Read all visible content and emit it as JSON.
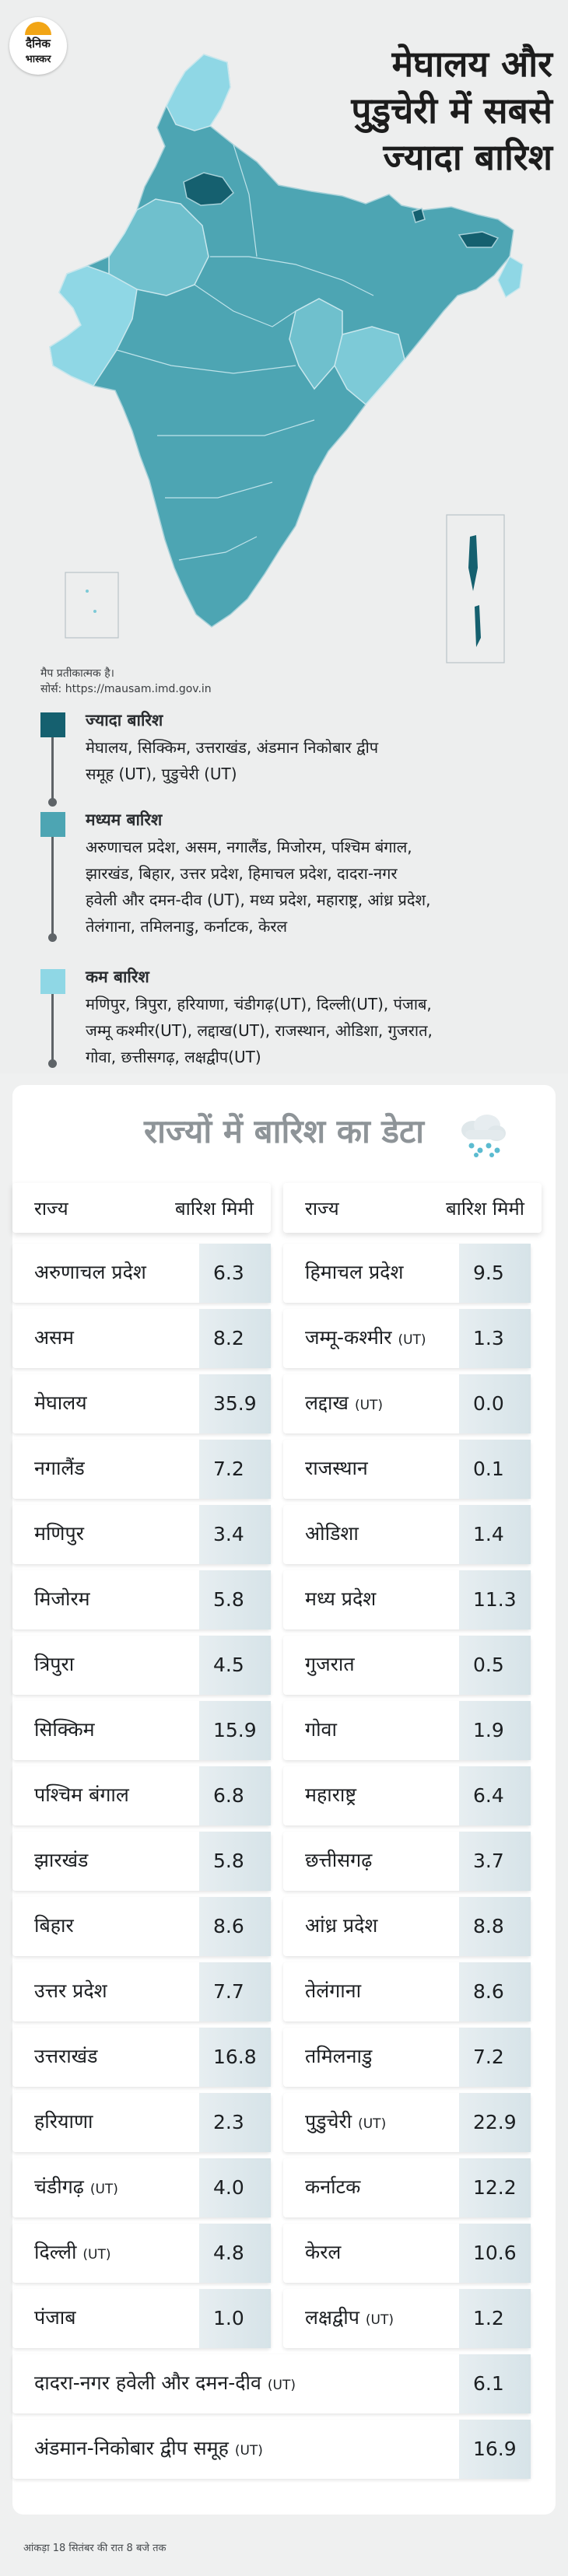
{
  "brand": {
    "logo_line1": "दैनिक",
    "logo_line2": "भास्कर"
  },
  "headline": [
    "मेघालय और",
    "पुडुचेरी में सबसे",
    "ज्यादा बारिश"
  ],
  "map_notes": {
    "line1": "मैप प्रतीकात्मक है।",
    "line2": "सोर्स: https://mausam.imd.gov.in"
  },
  "colors": {
    "high": "#15606f",
    "medium": "#4da5b3",
    "low": "#8fd7e5",
    "accent": "#f2a515"
  },
  "legend": [
    {
      "title": "ज्यादा बारिश",
      "lines": [
        "मेघालय, सिक्किम, उत्तराखंड, अंडमान निकोबार द्वीप",
        "समूह (UT), पुडुचेरी (UT)"
      ]
    },
    {
      "title": "मध्यम बारिश",
      "lines": [
        "अरुणाचल प्रदेश, असम, नगालैंड, मिजोरम, पश्चिम बंगाल,",
        "झारखंड, बिहार, उत्तर प्रदेश, हिमाचल प्रदेश, दादरा-नगर",
        "हवेली और दमन-दीव (UT), मध्य प्रदेश, महाराष्ट्र, आंध्र प्रदेश,",
        "तेलंगाना, तमिलनाडु, कर्नाटक, केरल"
      ]
    },
    {
      "title": "कम बारिश",
      "lines": [
        "मणिपुर, त्रिपुरा, हरियाणा, चंडीगढ़(UT), दिल्ली(UT), पंजाब,",
        "जम्मू कश्मीर(UT), लद्दाख(UT), राजस्थान, ओडिशा, गुजरात,",
        "गोवा, छत्तीसगढ़, लक्षद्वीप(UT)"
      ]
    }
  ],
  "table": {
    "title": "राज्यों में बारिश का डेटा",
    "icon": "rain-cloud-icon",
    "col_state": "राज्य",
    "col_rain": "बारिश मिमी",
    "left": [
      {
        "name": "अरुणाचल प्रदेश",
        "ut": "",
        "value": "6.3"
      },
      {
        "name": "असम",
        "ut": "",
        "value": "8.2"
      },
      {
        "name": "मेघालय",
        "ut": "",
        "value": "35.9"
      },
      {
        "name": "नगालैंड",
        "ut": "",
        "value": "7.2"
      },
      {
        "name": "मणिपुर",
        "ut": "",
        "value": "3.4"
      },
      {
        "name": "मिजोरम",
        "ut": "",
        "value": "5.8"
      },
      {
        "name": "त्रिपुरा",
        "ut": "",
        "value": "4.5"
      },
      {
        "name": "सिक्किम",
        "ut": "",
        "value": "15.9"
      },
      {
        "name": "पश्चिम बंगाल",
        "ut": "",
        "value": "6.8"
      },
      {
        "name": "झारखंड",
        "ut": "",
        "value": "5.8"
      },
      {
        "name": "बिहार",
        "ut": "",
        "value": "8.6"
      },
      {
        "name": "उत्तर प्रदेश",
        "ut": "",
        "value": "7.7"
      },
      {
        "name": "उत्तराखंड",
        "ut": "",
        "value": "16.8"
      },
      {
        "name": "हरियाणा",
        "ut": "",
        "value": "2.3"
      },
      {
        "name": "चंडीगढ़",
        "ut": "(UT)",
        "value": "4.0"
      },
      {
        "name": "दिल्ली",
        "ut": "(UT)",
        "value": "4.8"
      },
      {
        "name": "पंजाब",
        "ut": "",
        "value": "1.0"
      }
    ],
    "right": [
      {
        "name": "हिमाचल प्रदेश",
        "ut": "",
        "value": "9.5"
      },
      {
        "name": "जम्मू-कश्मीर",
        "ut": "(UT)",
        "value": "1.3"
      },
      {
        "name": "लद्दाख",
        "ut": "(UT)",
        "value": "0.0"
      },
      {
        "name": "राजस्थान",
        "ut": "",
        "value": "0.1"
      },
      {
        "name": "ओडिशा",
        "ut": "",
        "value": "1.4"
      },
      {
        "name": "मध्य प्रदेश",
        "ut": "",
        "value": "11.3"
      },
      {
        "name": "गुजरात",
        "ut": "",
        "value": "0.5"
      },
      {
        "name": "गोवा",
        "ut": "",
        "value": "1.9"
      },
      {
        "name": "महाराष्ट्र",
        "ut": "",
        "value": "6.4"
      },
      {
        "name": "छत्तीसगढ़",
        "ut": "",
        "value": "3.7"
      },
      {
        "name": "आंध्र प्रदेश",
        "ut": "",
        "value": "8.8"
      },
      {
        "name": "तेलंगाना",
        "ut": "",
        "value": "8.6"
      },
      {
        "name": "तमिलनाडु",
        "ut": "",
        "value": "7.2"
      },
      {
        "name": "पुडुचेरी",
        "ut": "(UT)",
        "value": "22.9"
      },
      {
        "name": "कर्नाटक",
        "ut": "",
        "value": "12.2"
      },
      {
        "name": "केरल",
        "ut": "",
        "value": "10.6"
      },
      {
        "name": "लक्षद्वीप",
        "ut": "(UT)",
        "value": "1.2"
      }
    ],
    "full": [
      {
        "name": "दादरा-नगर हवेली और दमन-दीव",
        "ut": "(UT)",
        "value": "6.1"
      },
      {
        "name": "अंडमान-निकोबार द्वीप समूह",
        "ut": "(UT)",
        "value": "16.9"
      }
    ]
  },
  "footer": "आंकड़ा 18 सितंबर की रात 8 बजे तक"
}
